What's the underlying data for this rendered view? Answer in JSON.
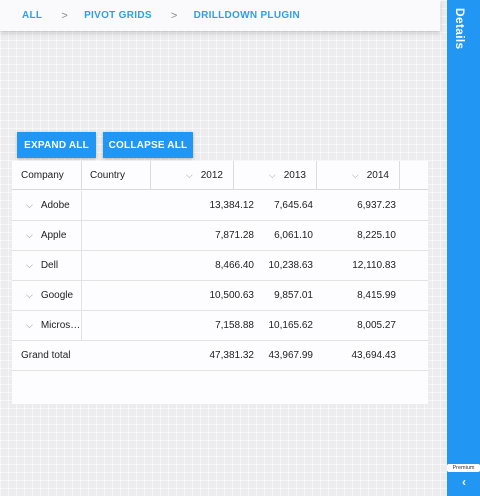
{
  "breadcrumb": {
    "items": [
      "ALL",
      "PIVOT GRIDS",
      "DRILLDOWN PLUGIN"
    ],
    "separator": ">"
  },
  "side_panel": {
    "title": "Details",
    "badge": "Premium",
    "icon": "chevron-left-icon",
    "color": "#2196f3"
  },
  "toolbar": {
    "expand_all": "EXPAND ALL",
    "collapse_all": "COLLAPSE ALL"
  },
  "grid": {
    "headers": {
      "company": "Company",
      "country": "Country",
      "years": [
        "2012",
        "2013",
        "2014"
      ]
    },
    "rows": [
      {
        "company": "Adobe",
        "values": [
          "13,384.12",
          "7,645.64",
          "6,937.23"
        ]
      },
      {
        "company": "Apple",
        "values": [
          "7,871.28",
          "6,061.10",
          "8,225.10"
        ]
      },
      {
        "company": "Dell",
        "values": [
          "8,466.40",
          "10,238.63",
          "12,110.83"
        ]
      },
      {
        "company": "Google",
        "values": [
          "10,500.63",
          "9,857.01",
          "8,415.99"
        ]
      },
      {
        "company": "Micros…",
        "values": [
          "7,158.88",
          "10,165.62",
          "8,005.27"
        ]
      }
    ],
    "grand_total": {
      "label": "Grand total",
      "values": [
        "47,381.32",
        "43,967.99",
        "43,694.43"
      ]
    }
  }
}
